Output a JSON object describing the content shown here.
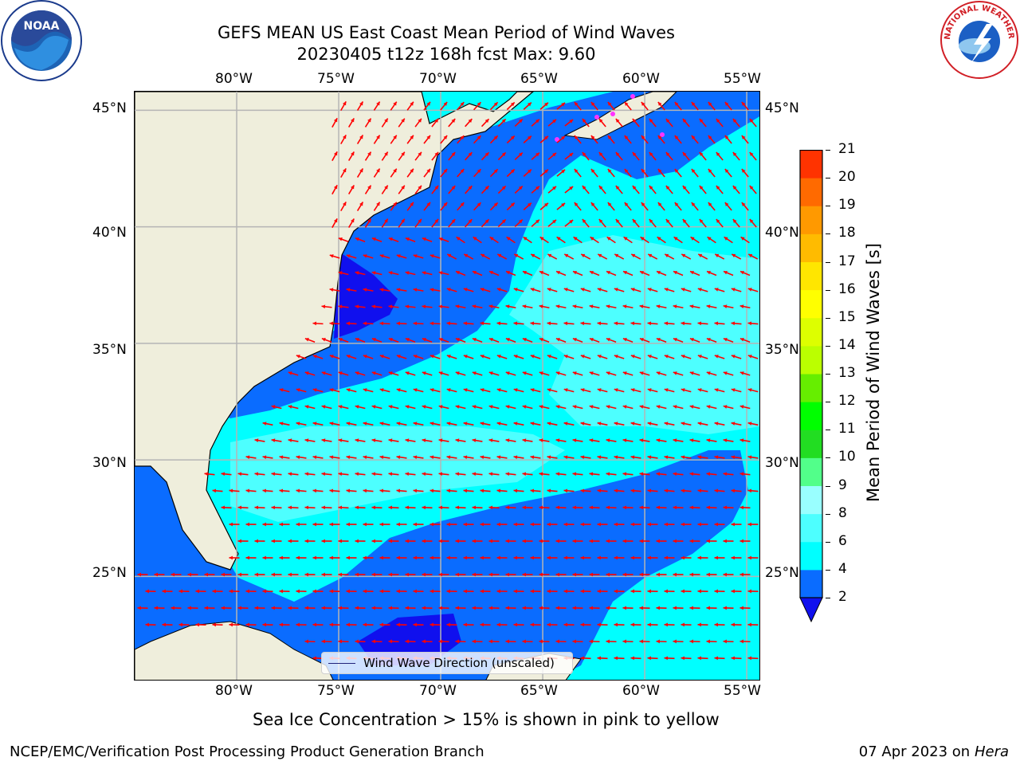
{
  "title": {
    "line1": "GEFS MEAN US East Coast Mean Period of Wind Waves",
    "line2": "20230405 t12z 168h fcst   Max: 9.60"
  },
  "map": {
    "lon_ticks": [
      "80°W",
      "75°W",
      "70°W",
      "65°W",
      "60°W",
      "55°W"
    ],
    "lat_ticks": [
      "45°N",
      "40°N",
      "35°N",
      "30°N",
      "25°N"
    ],
    "extent": {
      "lon_min": -85,
      "lon_max": -54.3,
      "lat_min": 20.5,
      "lat_max": 45.8
    },
    "land_color": "#efeedc",
    "grid": true
  },
  "legend": {
    "label": "Wind Wave Direction (unscaled)"
  },
  "colorbar": {
    "title": "Mean Period of Wind Waves [s]",
    "ticks": [
      "2",
      "4",
      "6",
      "8",
      "9",
      "10",
      "11",
      "12",
      "13",
      "14",
      "15",
      "16",
      "17",
      "18",
      "19",
      "20",
      "21"
    ],
    "colors": [
      "#0a6cff",
      "#00ffff",
      "#4dffff",
      "#99ffff",
      "#52ff8a",
      "#22dd22",
      "#00ff00",
      "#66ee00",
      "#bbff00",
      "#ddff00",
      "#ffff00",
      "#ffe600",
      "#ffbb00",
      "#ff9900",
      "#ff6a00",
      "#ff3300",
      "#ff0000"
    ],
    "under_color": "#1010ee",
    "extend": "min"
  },
  "subtitle": "Sea Ice Concentration > 15% is shown in pink to yellow",
  "footer": {
    "left": "NCEP/EMC/Verification Post Processing Product Generation Branch",
    "date": "07 Apr 2023 on ",
    "host": "Hera"
  },
  "logos": {
    "left": "NOAA",
    "right": "NATIONAL WEATHER SERVICE"
  },
  "arrow_color": "#ff0000"
}
